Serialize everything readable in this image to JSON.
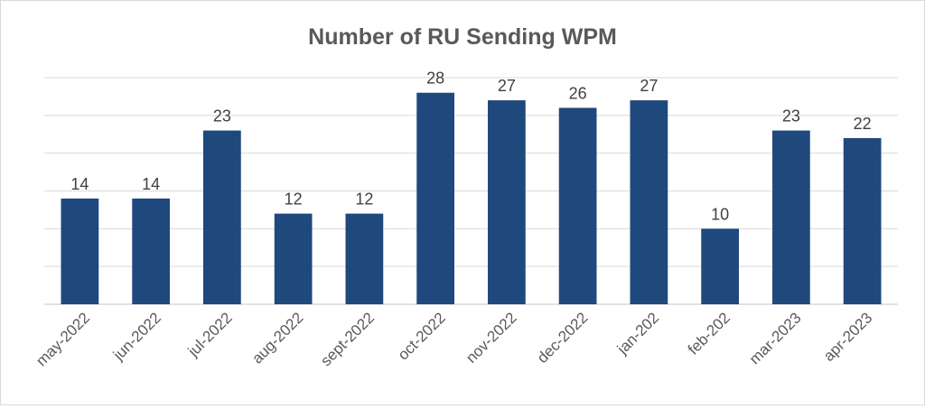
{
  "chart_data": {
    "type": "bar",
    "title": "Number of RU Sending WPM",
    "xlabel": "",
    "ylabel": "",
    "categories": [
      "may-2022",
      "jun-2022",
      "jul-2022",
      "aug-2022",
      "sept-2022",
      "oct-2022",
      "nov-2022",
      "dec-2022",
      "jan-202",
      "feb-202",
      "mar-2023",
      "apr-2023"
    ],
    "values": [
      14,
      14,
      23,
      12,
      12,
      28,
      27,
      26,
      27,
      10,
      23,
      22
    ],
    "ylim": [
      0,
      30
    ],
    "grid": true,
    "legend": "none",
    "data_labels": true,
    "bar_color": "#1f497d",
    "gridline_color": "#d9d9d9"
  }
}
